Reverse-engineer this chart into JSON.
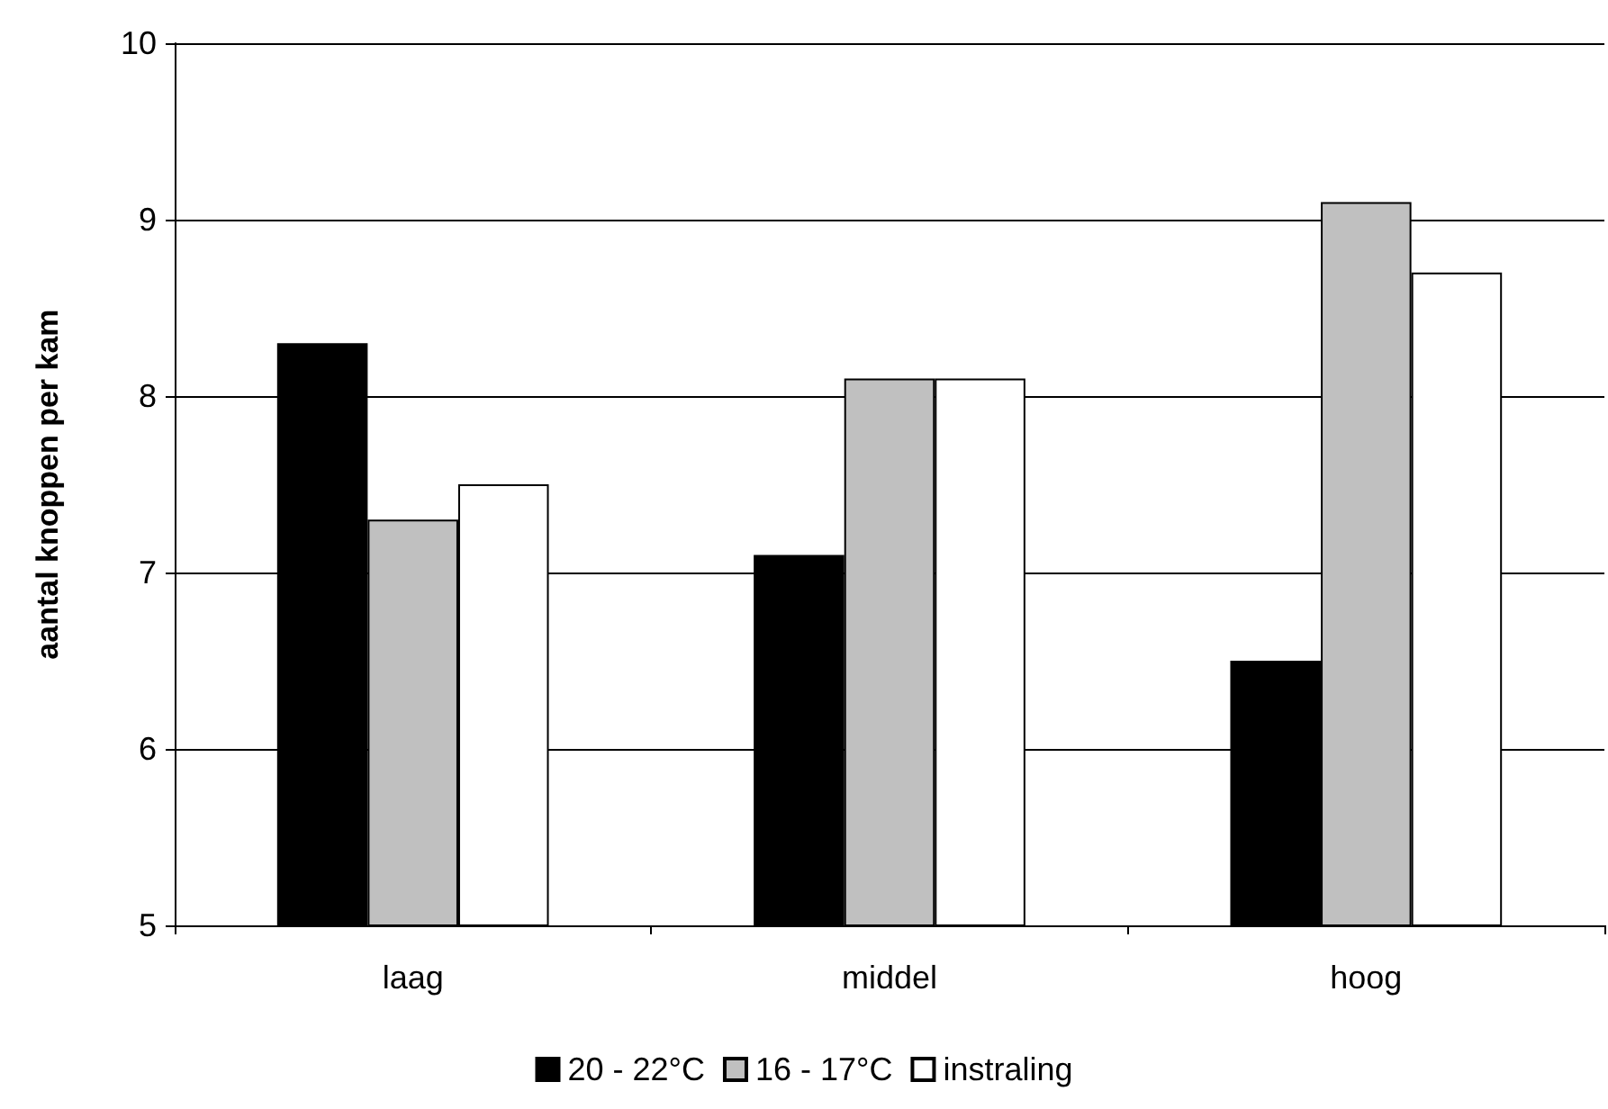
{
  "chart_data": {
    "type": "bar",
    "ylabel": "aantal knoppen per kam",
    "categories": [
      "laag",
      "middel",
      "hoog"
    ],
    "series": [
      {
        "name": "20 - 22°C",
        "color": "#000000",
        "values": [
          8.3,
          7.1,
          6.5
        ]
      },
      {
        "name": "16 - 17°C",
        "color": "#c0c0c0",
        "values": [
          7.3,
          8.1,
          9.1
        ]
      },
      {
        "name": "instraling",
        "color": "#ffffff",
        "values": [
          7.5,
          8.1,
          8.7
        ]
      }
    ],
    "ylim": [
      5,
      10
    ],
    "yticks": [
      5,
      6,
      7,
      8,
      9,
      10
    ],
    "grid": "y",
    "legend": "bottom"
  }
}
